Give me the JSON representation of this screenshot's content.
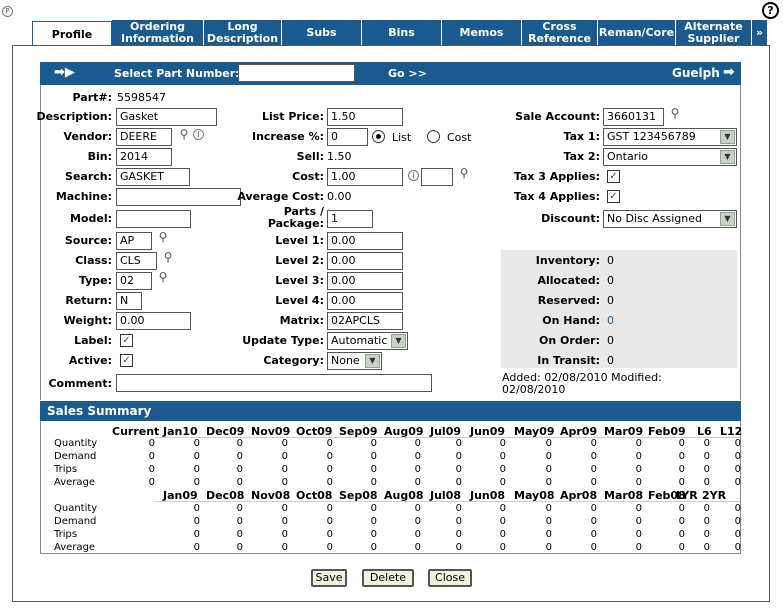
{
  "tabs": [
    {
      "label": "Profile"
    },
    {
      "label": "Ordering Information"
    },
    {
      "label": "Long Description"
    },
    {
      "label": "Subs"
    },
    {
      "label": "Bins"
    },
    {
      "label": "Memos"
    },
    {
      "label": "Cross Reference"
    },
    {
      "label": "Reman/Core"
    },
    {
      "label": "Alternate Supplier"
    },
    {
      "label": "»"
    }
  ],
  "topbar": {
    "select_label": "Select Part Number:",
    "select_value": "",
    "go_label": "Go >>",
    "location": "Guelph"
  },
  "part": {
    "partno_label": "Part#:",
    "partno": "5598547",
    "description_label": "Description:",
    "description": "Gasket",
    "vendor_label": "Vendor:",
    "vendor": "DEERE",
    "bin_label": "Bin:",
    "bin": "2014",
    "search_label": "Search:",
    "search": "GASKET",
    "machine_label": "Machine:",
    "machine": "",
    "model_label": "Model:",
    "model": "",
    "source_label": "Source:",
    "source": "AP",
    "class_label": "Class:",
    "class": "CLS",
    "type_label": "Type:",
    "type": "02",
    "return_label": "Return:",
    "return": "N",
    "weight_label": "Weight:",
    "weight": "0.00",
    "label_label": "Label:",
    "label_checked": true,
    "active_label": "Active:",
    "active_checked": true,
    "comment_label": "Comment:",
    "comment": ""
  },
  "pricing": {
    "list_price_label": "List Price:",
    "list_price": "1.50",
    "increase_label": "Increase %:",
    "increase": "0",
    "list_radio": "List",
    "cost_radio": "Cost",
    "sell_label": "Sell:",
    "sell": "1.50",
    "cost_label": "Cost:",
    "cost": "1.00",
    "cost_extra": "",
    "avg_cost_label": "Average Cost:",
    "avg_cost": "0.00",
    "parts_package_label": "Parts / Package:",
    "parts_package": "1",
    "level1_label": "Level 1:",
    "level1": "0.00",
    "level2_label": "Level 2:",
    "level2": "0.00",
    "level3_label": "Level 3:",
    "level3": "0.00",
    "level4_label": "Level 4:",
    "level4": "0.00",
    "matrix_label": "Matrix:",
    "matrix": "02APCLS",
    "update_type_label": "Update Type:",
    "update_type": "Automatic",
    "category_label": "Category:",
    "category": "None"
  },
  "account": {
    "sale_account_label": "Sale Account:",
    "sale_account": "3660131",
    "tax1_label": "Tax 1:",
    "tax1": "GST 123456789",
    "tax2_label": "Tax 2:",
    "tax2": "Ontario",
    "tax3_label": "Tax 3 Applies:",
    "tax3_checked": true,
    "tax4_label": "Tax 4 Applies:",
    "tax4_checked": true,
    "discount_label": "Discount:",
    "discount": "No Disc Assigned"
  },
  "inventory": {
    "inventory_label": "Inventory:",
    "inventory": "0",
    "allocated_label": "Allocated:",
    "allocated": "0",
    "reserved_label": "Reserved:",
    "reserved": "0",
    "onhand_label": "On Hand:",
    "onhand": "0",
    "onorder_label": "On Order:",
    "onorder": "0",
    "intransit_label": "In Transit:",
    "intransit": "0",
    "added_text": "Added: 02/08/2010  Modified:",
    "modified_text": "02/08/2010"
  },
  "sales_summary": {
    "title": "Sales Summary",
    "row_labels": [
      "Quantity",
      "Demand",
      "Trips",
      "Average"
    ],
    "top_headers": [
      "Current",
      "Jan10",
      "Dec09",
      "Nov09",
      "Oct09",
      "Sep09",
      "Aug09",
      "Jul09",
      "Jun09",
      "May09",
      "Apr09",
      "Mar09",
      "Feb09",
      "L6",
      "L12"
    ],
    "bottom_headers": [
      "Jan09",
      "Dec08",
      "Nov08",
      "Oct08",
      "Sep08",
      "Aug08",
      "Jul08",
      "Jun08",
      "May08",
      "Apr08",
      "Mar08",
      "Feb08",
      "LYR",
      "2YR"
    ],
    "cell_value": "0"
  },
  "buttons": {
    "save": "Save",
    "delete": "Delete",
    "close": "Close"
  },
  "colors": {
    "header_blue": "#1a5a8f",
    "inventory_bg": "#e8e8e8",
    "button_bg": "#f3f1dd"
  }
}
